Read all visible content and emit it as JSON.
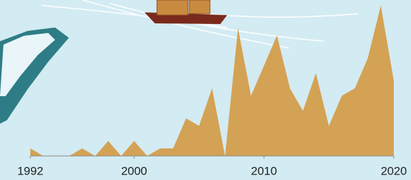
{
  "chart_data": {
    "type": "area",
    "x": [
      1992,
      1993,
      1994,
      1995,
      1996,
      1997,
      1998,
      1999,
      2000,
      2001,
      2002,
      2003,
      2004,
      2005,
      2006,
      2007,
      2008,
      2009,
      2010,
      2011,
      2012,
      2013,
      2014,
      2015,
      2016,
      2017,
      2018,
      2019,
      2020
    ],
    "values": [
      1,
      0,
      0,
      0,
      1,
      0,
      2,
      0,
      2,
      0,
      1,
      1,
      5,
      4,
      9,
      0,
      17,
      8,
      12,
      16,
      9,
      6,
      11,
      4,
      8,
      9,
      13,
      20,
      10
    ],
    "color": "#d4a254",
    "xlim": [
      1992,
      2020
    ],
    "xticks": [
      1992,
      2000,
      2010,
      2020
    ]
  }
}
